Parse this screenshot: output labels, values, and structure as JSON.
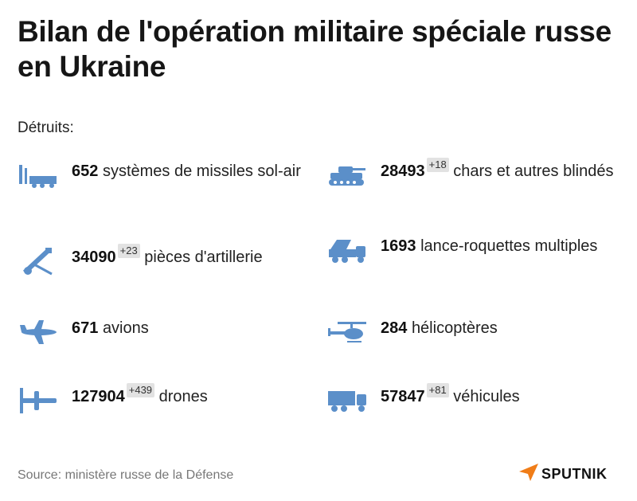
{
  "title": "Bilan de l'opération militaire spéciale russe en Ukraine",
  "subtitle": "Détruits:",
  "stats": [
    {
      "icon": "missile-launcher-icon",
      "number": "652",
      "delta": "",
      "label": "systèmes de missiles sol-air"
    },
    {
      "icon": "tank-icon",
      "number": "28493",
      "delta": "+18",
      "label": "chars et autres blindés"
    },
    {
      "icon": "artillery-icon",
      "number": "34090",
      "delta": "+23",
      "label": "pièces d'artillerie"
    },
    {
      "icon": "rocket-launcher-truck-icon",
      "number": "1693",
      "delta": "",
      "label": "lance-roquettes multiples"
    },
    {
      "icon": "airplane-icon",
      "number": "671",
      "delta": "",
      "label": "avions"
    },
    {
      "icon": "helicopter-icon",
      "number": "284",
      "delta": "",
      "label": "hélicoptères"
    },
    {
      "icon": "drone-icon",
      "number": "127904",
      "delta": "+439",
      "label": "drones"
    },
    {
      "icon": "truck-icon",
      "number": "57847",
      "delta": "+81",
      "label": "véhicules"
    }
  ],
  "source": "Source: ministère russe de la Défense",
  "logo": "SPUTNIK",
  "colors": {
    "icon": "#5b8fc9",
    "logo_accent": "#f07d18",
    "delta_bg": "#e2e2e2"
  }
}
